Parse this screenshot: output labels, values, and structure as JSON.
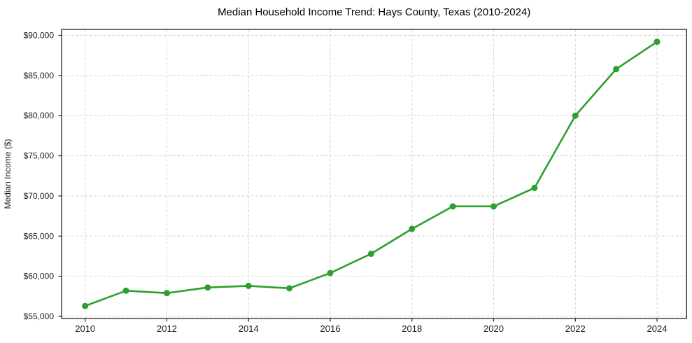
{
  "chart_data": {
    "type": "line",
    "title": "Median Household Income Trend: Hays County, Texas (2010-2024)",
    "xlabel": "",
    "ylabel": "Median Income ($)",
    "x": [
      2010,
      2011,
      2012,
      2013,
      2014,
      2015,
      2016,
      2017,
      2018,
      2019,
      2020,
      2021,
      2022,
      2023,
      2024
    ],
    "values": [
      56300,
      58200,
      57900,
      58600,
      58800,
      58500,
      60400,
      62800,
      65900,
      68700,
      68700,
      71000,
      80000,
      85800,
      89200
    ],
    "series_name": "Median Household Income",
    "xticks": [
      2010,
      2012,
      2014,
      2016,
      2018,
      2020,
      2022,
      2024
    ],
    "xtick_labels": [
      "2010",
      "2012",
      "2014",
      "2016",
      "2018",
      "2020",
      "2022",
      "2024"
    ],
    "yticks": [
      55000,
      60000,
      65000,
      70000,
      75000,
      80000,
      85000,
      90000
    ],
    "ytick_labels": [
      "$55,000",
      "$60,000",
      "$65,000",
      "$70,000",
      "$75,000",
      "$80,000",
      "$85,000",
      "$90,000"
    ],
    "ylim": [
      54750,
      90850
    ],
    "xlim": [
      2009.4,
      2024.7
    ],
    "grid": true,
    "grid_style": "dashed",
    "legend": "none",
    "line_color": "#2ca02c",
    "marker": "circle",
    "marker_color": "#2ca02c",
    "gridline_color": "#cccccc",
    "spine_color": "#222222",
    "background_color": "#ffffff"
  }
}
